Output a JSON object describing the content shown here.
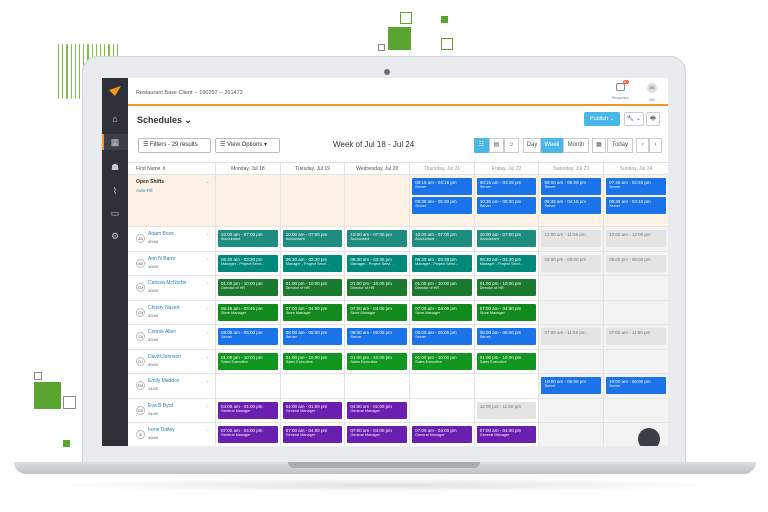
{
  "colors": {
    "accent": "#f7941d",
    "publish": "#4bb6e8",
    "server": "#1a73e8",
    "accountant": "#1e8c7e",
    "manager": "#00897b",
    "director": "#1b7a2d",
    "store": "#138a1e",
    "sales": "#11961f",
    "general": "#6a1fb0"
  },
  "app": {
    "client_name": "Restaurant Base Client -- 190257 -- 261472",
    "requests_label": "Requests",
    "requests_badge": "10",
    "me_label": "Me",
    "me_initials": "MB"
  },
  "page": {
    "title": "Schedules ⌄",
    "publish_label": "Publish ⌄",
    "tools_label": "🔧 ⌄",
    "print_label": "🖶"
  },
  "toolbar": {
    "filter_label": "☰ Filters - 29 results",
    "view_label": "☰ View Options ▾",
    "week_title": "Week of Jul 18 - Jul 24",
    "views": [
      "Day",
      "Week",
      "Month"
    ],
    "active_view": "Week",
    "today_label": "Today",
    "prev": "‹",
    "next": "›"
  },
  "grid": {
    "first_col": "First Name ⇕",
    "days": [
      "Monday, Jul 18",
      "Tuesday, Jul 19",
      "Wednesday, Jul 20",
      "Thursday, Jul 21",
      "Friday, Jul 22",
      "Saturday, Jul 23",
      "Sunday, Jul 24"
    ],
    "open_shifts": {
      "title": "Open Shifts",
      "subtitle": "Auto-Fill",
      "days": [
        [],
        [],
        [],
        [
          {
            "t": "08:15 am - 04:15 pm",
            "r": "Server",
            "c": "server"
          },
          {
            "t": "09:30 am - 05:30 pm",
            "r": "Server",
            "c": "server"
          }
        ],
        [
          {
            "t": "08:15 am - 03:25 pm",
            "r": "Server",
            "c": "server"
          },
          {
            "t": "10:30 am - 05:30 pm",
            "r": "Server",
            "c": "server"
          }
        ],
        [
          {
            "t": "09:00 am - 05:00 pm",
            "r": "Server",
            "c": "server"
          },
          {
            "t": "09:45 am - 04:15 pm",
            "r": "Server",
            "c": "server"
          }
        ],
        [
          {
            "t": "07:45 am - 02:45 pm",
            "r": "Server",
            "c": "server"
          },
          {
            "t": "09:45 am - 04:15 pm",
            "r": "Server",
            "c": "server"
          }
        ]
      ]
    },
    "employees": [
      {
        "initials": "AB",
        "name": "Adam Boss",
        "hours": "40/40",
        "shifts": [
          {
            "t": "10:00 am - 07:00 pm",
            "r": "Accountant",
            "c": "accountant"
          },
          {
            "t": "10:00 am - 07:00 pm",
            "r": "Accountant",
            "c": "accountant"
          },
          {
            "t": "10:00 am - 07:00 pm",
            "r": "Accountant",
            "c": "accountant"
          },
          {
            "t": "10:00 am - 07:00 pm",
            "r": "Accountant",
            "c": "accountant"
          },
          {
            "t": "10:00 am - 07:00 pm",
            "r": "Accountant",
            "c": "accountant"
          },
          {
            "t": "12:00 am - 11:59 pm",
            "r": "",
            "c": "light"
          },
          {
            "t": "12:00 am - 12:00 pm",
            "r": "",
            "c": "light"
          }
        ]
      },
      {
        "initials": "AB",
        "name": "Ann N Barre",
        "hours": "40/40",
        "shifts": [
          {
            "t": "06:30 am - 03:30 pm",
            "r": "Manager - Project Servi...",
            "c": "manager"
          },
          {
            "t": "06:30 am - 03:30 pm",
            "r": "Manager - Project Servi...",
            "c": "manager"
          },
          {
            "t": "06:30 am - 03:30 pm",
            "r": "Manager - Project Servi...",
            "c": "manager"
          },
          {
            "t": "06:30 am - 03:30 pm",
            "r": "Manager - Project Servi...",
            "c": "manager"
          },
          {
            "t": "06:30 am - 03:30 pm",
            "r": "Manager - Project Servi...",
            "c": "manager"
          },
          {
            "t": "03:00 pm - 09:00 pm",
            "r": "",
            "c": "light"
          },
          {
            "t": "06:00 pm - 06:00 pm",
            "r": "",
            "c": "light"
          }
        ]
      },
      {
        "initials": "CM",
        "name": "Carissa McNortin",
        "hours": "40/40",
        "shifts": [
          {
            "t": "01:00 pm - 10:00 pm",
            "r": "Director of HR",
            "c": "director"
          },
          {
            "t": "01:00 pm - 10:00 pm",
            "r": "Director of HR",
            "c": "director"
          },
          {
            "t": "01:00 pm - 10:00 pm",
            "r": "Director of HR",
            "c": "director"
          },
          {
            "t": "01:00 pm - 10:00 pm",
            "r": "Director of HR",
            "c": "director"
          },
          {
            "t": "01:00 pm - 10:00 pm",
            "r": "Director of HR",
            "c": "director"
          },
          null,
          null
        ]
      },
      {
        "initials": "CN",
        "name": "Christy Nasert",
        "hours": "40/40",
        "shifts": [
          {
            "t": "06:45 am - 03:45 pm",
            "r": "Store Manager",
            "c": "store"
          },
          {
            "t": "07:00 am - 04:00 pm",
            "r": "Store Manager",
            "c": "store"
          },
          {
            "t": "07:00 am - 04:00 pm",
            "r": "Store Manager",
            "c": "store"
          },
          {
            "t": "07:00 am - 04:00 pm",
            "r": "Store Manager",
            "c": "store"
          },
          {
            "t": "07:00 am - 04:00 pm",
            "r": "Store Manager",
            "c": "store"
          },
          null,
          null
        ]
      },
      {
        "initials": "CA",
        "name": "Connie Allen",
        "hours": "40/40",
        "shifts": [
          {
            "t": "08:00 am - 05:00 pm",
            "r": "Server",
            "c": "server"
          },
          {
            "t": "08:00 am - 05:00 pm",
            "r": "Server",
            "c": "server"
          },
          {
            "t": "08:00 am - 05:00 pm",
            "r": "Server",
            "c": "server"
          },
          {
            "t": "08:00 am - 05:00 pm",
            "r": "Server",
            "c": "server"
          },
          {
            "t": "08:00 am - 05:00 pm",
            "r": "Server",
            "c": "server"
          },
          {
            "t": "07:00 am - 11:59 pm",
            "r": "",
            "c": "light"
          },
          {
            "t": "07:00 am - 11:59 pm",
            "r": "",
            "c": "light"
          }
        ]
      },
      {
        "initials": "DJ",
        "name": "David Johnson",
        "hours": "40/40",
        "shifts": [
          {
            "t": "01:00 pm - 10:00 pm",
            "r": "Sales Executive",
            "c": "sales"
          },
          {
            "t": "01:00 pm - 10:00 pm",
            "r": "Sales Executive",
            "c": "sales"
          },
          {
            "t": "01:00 pm - 10:00 pm",
            "r": "Sales Executive",
            "c": "sales"
          },
          {
            "t": "01:00 pm - 10:00 pm",
            "r": "Sales Executive",
            "c": "sales"
          },
          {
            "t": "01:00 pm - 10:00 pm",
            "r": "Sales Executive",
            "c": "sales"
          },
          null,
          null
        ]
      },
      {
        "initials": "EM",
        "name": "Emily Maddox",
        "hours": "14/40",
        "shifts": [
          null,
          null,
          null,
          null,
          null,
          {
            "t": "10:00 am - 06:00 pm",
            "r": "Server",
            "c": "server"
          },
          {
            "t": "10:00 am - 06:00 pm",
            "r": "Server",
            "c": "server"
          }
        ]
      },
      {
        "initials": "EB",
        "name": "Eva B Byrd",
        "hours": "24/40",
        "shifts": [
          {
            "t": "04:00 am - 01:00 pm",
            "r": "General Manager",
            "c": "general"
          },
          {
            "t": "04:00 am - 01:00 pm",
            "r": "General Manager",
            "c": "general"
          },
          {
            "t": "04:00 am - 01:00 pm",
            "r": "General Manager",
            "c": "general"
          },
          null,
          {
            "t": "12:00 pm - 11:59 pm",
            "r": "",
            "c": "light"
          },
          null,
          null
        ]
      },
      {
        "initials": "ID",
        "name": "Irene Dailey",
        "hours": "40/40",
        "shifts": [
          {
            "t": "07:00 am - 04:00 pm",
            "r": "General Manager",
            "c": "general"
          },
          {
            "t": "07:00 am - 04:00 pm",
            "r": "General Manager",
            "c": "general"
          },
          {
            "t": "07:00 am - 04:00 pm",
            "r": "General Manager",
            "c": "general"
          },
          {
            "t": "07:00 am - 04:00 pm",
            "r": "General Manager",
            "c": "general"
          },
          {
            "t": "07:00 am - 04:00 pm",
            "r": "General Manager",
            "c": "general"
          },
          null,
          null
        ]
      }
    ]
  }
}
